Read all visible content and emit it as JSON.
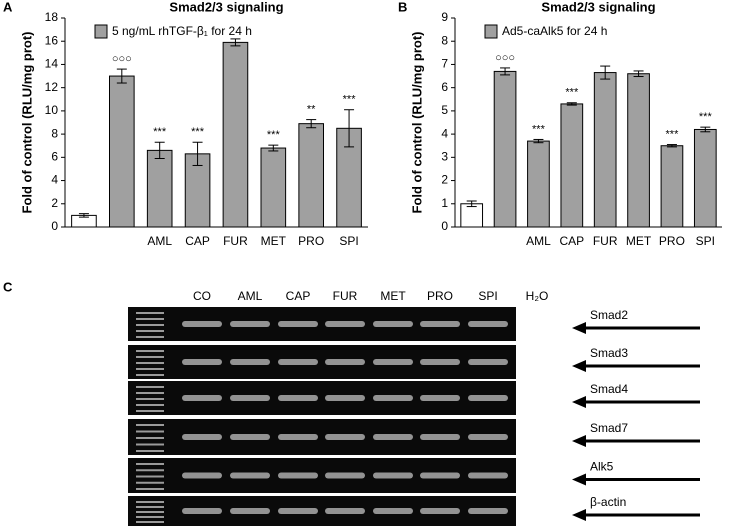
{
  "chart_data": [
    {
      "type": "bar",
      "panel": "A",
      "title": "Smad2/3 signaling",
      "y_label": "Fold of control (RLU/mg prot)",
      "categories": [
        null,
        null,
        "AML",
        "CAP",
        "FUR",
        "MET",
        "PRO",
        "SPI"
      ],
      "series": [
        {
          "name": "5 ng/mL rhTGF-β₁ for 24 h",
          "color": "#a0a0a0",
          "values": [
            1.0,
            13.0,
            6.6,
            6.3,
            15.9,
            6.8,
            8.9,
            8.5
          ],
          "errors": [
            0.15,
            0.6,
            0.7,
            1.0,
            0.3,
            0.25,
            0.35,
            1.6
          ]
        }
      ],
      "bar_colors": [
        "#ffffff",
        "#a0a0a0",
        "#a0a0a0",
        "#a0a0a0",
        "#a0a0a0",
        "#a0a0a0",
        "#a0a0a0",
        "#a0a0a0"
      ],
      "annotations": [
        null,
        "○○○",
        "***",
        "***",
        null,
        "***",
        "**",
        "***"
      ],
      "ylim": [
        0,
        18
      ],
      "yticks": [
        0,
        2,
        4,
        6,
        8,
        10,
        12,
        14,
        16,
        18
      ]
    },
    {
      "type": "bar",
      "panel": "B",
      "title": "Smad2/3 signaling",
      "y_label": "Fold of control (RLU/mg prot)",
      "categories": [
        null,
        null,
        "AML",
        "CAP",
        "FUR",
        "MET",
        "PRO",
        "SPI"
      ],
      "series": [
        {
          "name": "Ad5-caAlk5 for 24 h",
          "color": "#a0a0a0",
          "values": [
            1.0,
            6.7,
            3.7,
            5.3,
            6.65,
            6.6,
            3.5,
            4.2
          ],
          "errors": [
            0.12,
            0.15,
            0.07,
            0.05,
            0.28,
            0.12,
            0.05,
            0.1
          ]
        }
      ],
      "bar_colors": [
        "#ffffff",
        "#a0a0a0",
        "#a0a0a0",
        "#a0a0a0",
        "#a0a0a0",
        "#a0a0a0",
        "#a0a0a0",
        "#a0a0a0"
      ],
      "annotations": [
        null,
        "○○○",
        "***",
        "***",
        null,
        null,
        "***",
        "***"
      ],
      "ylim": [
        0,
        9
      ],
      "yticks": [
        0,
        1,
        2,
        3,
        4,
        5,
        6,
        7,
        8,
        9
      ]
    }
  ],
  "gel": {
    "panel": "C",
    "lanes": [
      "CO",
      "AML",
      "CAP",
      "FUR",
      "MET",
      "PRO",
      "SPI",
      "H₂O"
    ],
    "rows": [
      "Smad2",
      "Smad3",
      "Smad4",
      "Smad7",
      "Alk5",
      "β-actin"
    ]
  }
}
